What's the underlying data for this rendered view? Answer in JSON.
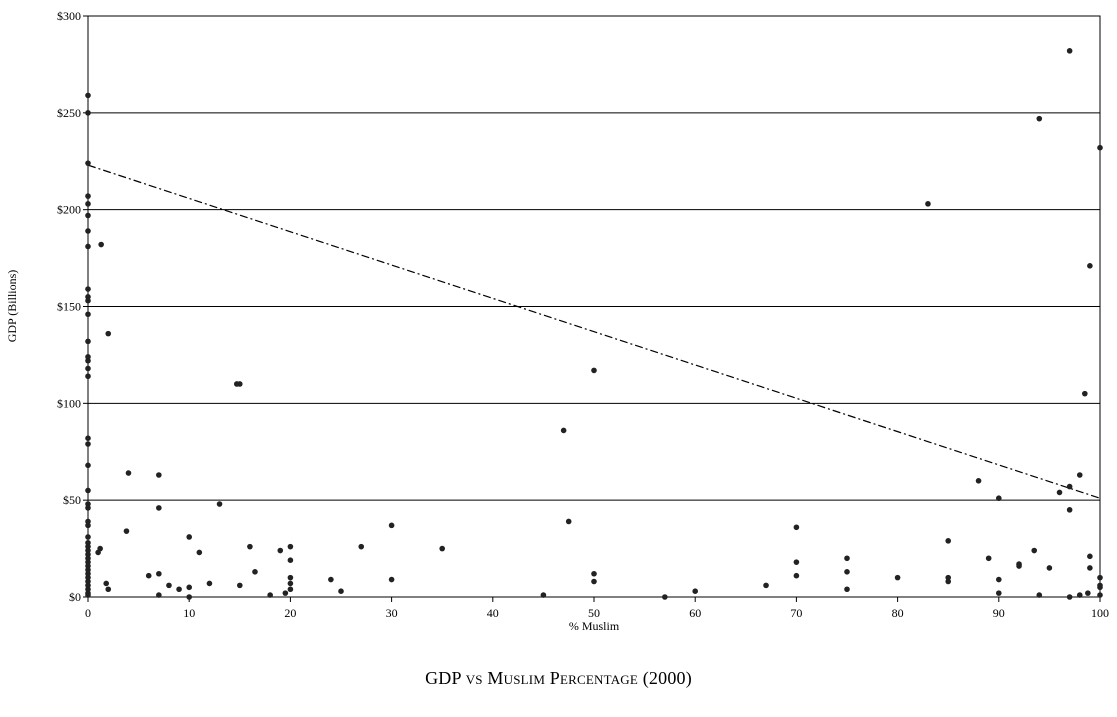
{
  "chart_data": {
    "type": "scatter",
    "title": "GDP vs Muslim Percentage (2000)",
    "xlabel": "% Muslim",
    "ylabel": "GDP (Billions)",
    "xlim": [
      0,
      100
    ],
    "ylim": [
      0,
      300
    ],
    "x_ticks": [
      "0",
      "10",
      "20",
      "30",
      "40",
      "50",
      "60",
      "70",
      "80",
      "90",
      "100"
    ],
    "y_ticks": [
      "$0",
      "$50",
      "$100",
      "$150",
      "$200",
      "$250",
      "$300"
    ],
    "grid": "horizontal",
    "series": [
      {
        "points": [
          [
            0,
            259
          ],
          [
            0,
            250
          ],
          [
            0,
            224
          ],
          [
            0,
            207
          ],
          [
            0,
            203
          ],
          [
            0,
            197
          ],
          [
            0,
            189
          ],
          [
            0,
            181
          ],
          [
            0,
            159
          ],
          [
            0,
            155
          ],
          [
            0,
            153
          ],
          [
            0,
            146
          ],
          [
            0,
            132
          ],
          [
            0,
            124
          ],
          [
            0,
            122
          ],
          [
            0,
            118
          ],
          [
            0,
            114
          ],
          [
            0,
            82
          ],
          [
            0,
            79
          ],
          [
            0,
            68
          ],
          [
            0,
            55
          ],
          [
            0,
            48
          ],
          [
            0,
            46
          ],
          [
            0,
            39
          ],
          [
            0,
            37
          ],
          [
            0,
            31
          ],
          [
            0,
            28
          ],
          [
            0,
            26
          ],
          [
            0,
            24
          ],
          [
            0,
            22
          ],
          [
            0,
            20
          ],
          [
            0,
            18
          ],
          [
            0,
            16
          ],
          [
            0,
            14
          ],
          [
            0,
            12
          ],
          [
            0,
            10
          ],
          [
            0,
            8
          ],
          [
            0,
            6
          ],
          [
            0,
            4
          ],
          [
            0,
            2
          ],
          [
            0,
            1
          ],
          [
            1,
            23
          ],
          [
            1.2,
            25
          ],
          [
            1.3,
            182
          ],
          [
            2,
            136
          ],
          [
            1.8,
            7
          ],
          [
            2,
            4
          ],
          [
            4,
            64
          ],
          [
            3.8,
            34
          ],
          [
            6,
            11
          ],
          [
            7,
            63
          ],
          [
            7,
            46
          ],
          [
            7,
            12
          ],
          [
            7,
            1
          ],
          [
            8,
            6
          ],
          [
            9,
            4
          ],
          [
            10,
            31
          ],
          [
            10,
            5
          ],
          [
            10,
            0
          ],
          [
            11,
            23
          ],
          [
            12,
            7
          ],
          [
            13,
            48
          ],
          [
            14.7,
            110
          ],
          [
            15,
            110
          ],
          [
            15,
            6
          ],
          [
            16,
            26
          ],
          [
            16.5,
            13
          ],
          [
            18,
            1
          ],
          [
            19,
            24
          ],
          [
            19.5,
            2
          ],
          [
            20,
            26
          ],
          [
            20,
            19
          ],
          [
            20,
            10
          ],
          [
            20,
            7
          ],
          [
            20,
            4
          ],
          [
            24,
            9
          ],
          [
            25,
            3
          ],
          [
            27,
            26
          ],
          [
            30,
            37
          ],
          [
            30,
            9
          ],
          [
            35,
            25
          ],
          [
            45,
            1
          ],
          [
            47,
            86
          ],
          [
            47.5,
            39
          ],
          [
            50,
            117
          ],
          [
            50,
            12
          ],
          [
            50,
            8
          ],
          [
            57,
            0
          ],
          [
            60,
            3
          ],
          [
            67,
            6
          ],
          [
            70,
            36
          ],
          [
            70,
            18
          ],
          [
            70,
            11
          ],
          [
            75,
            20
          ],
          [
            75,
            13
          ],
          [
            75,
            4
          ],
          [
            80,
            10
          ],
          [
            83,
            203
          ],
          [
            85,
            29
          ],
          [
            85,
            10
          ],
          [
            85,
            8
          ],
          [
            88,
            60
          ],
          [
            89,
            20
          ],
          [
            90,
            51
          ],
          [
            90,
            9
          ],
          [
            90,
            2
          ],
          [
            92,
            17
          ],
          [
            92,
            16
          ],
          [
            93.5,
            24
          ],
          [
            94,
            247
          ],
          [
            94,
            1
          ],
          [
            95,
            15
          ],
          [
            96,
            54
          ],
          [
            97,
            282
          ],
          [
            97,
            57
          ],
          [
            97,
            45
          ],
          [
            97,
            0
          ],
          [
            98,
            63
          ],
          [
            98,
            1
          ],
          [
            98.5,
            105
          ],
          [
            98.8,
            2
          ],
          [
            99,
            171
          ],
          [
            99,
            21
          ],
          [
            99,
            15
          ],
          [
            100,
            232
          ],
          [
            100,
            10
          ],
          [
            100,
            6
          ],
          [
            100,
            5
          ],
          [
            100,
            1
          ]
        ]
      }
    ],
    "trendline": {
      "style": "dash-dot",
      "from": [
        0,
        223
      ],
      "to": [
        100,
        51
      ]
    }
  }
}
